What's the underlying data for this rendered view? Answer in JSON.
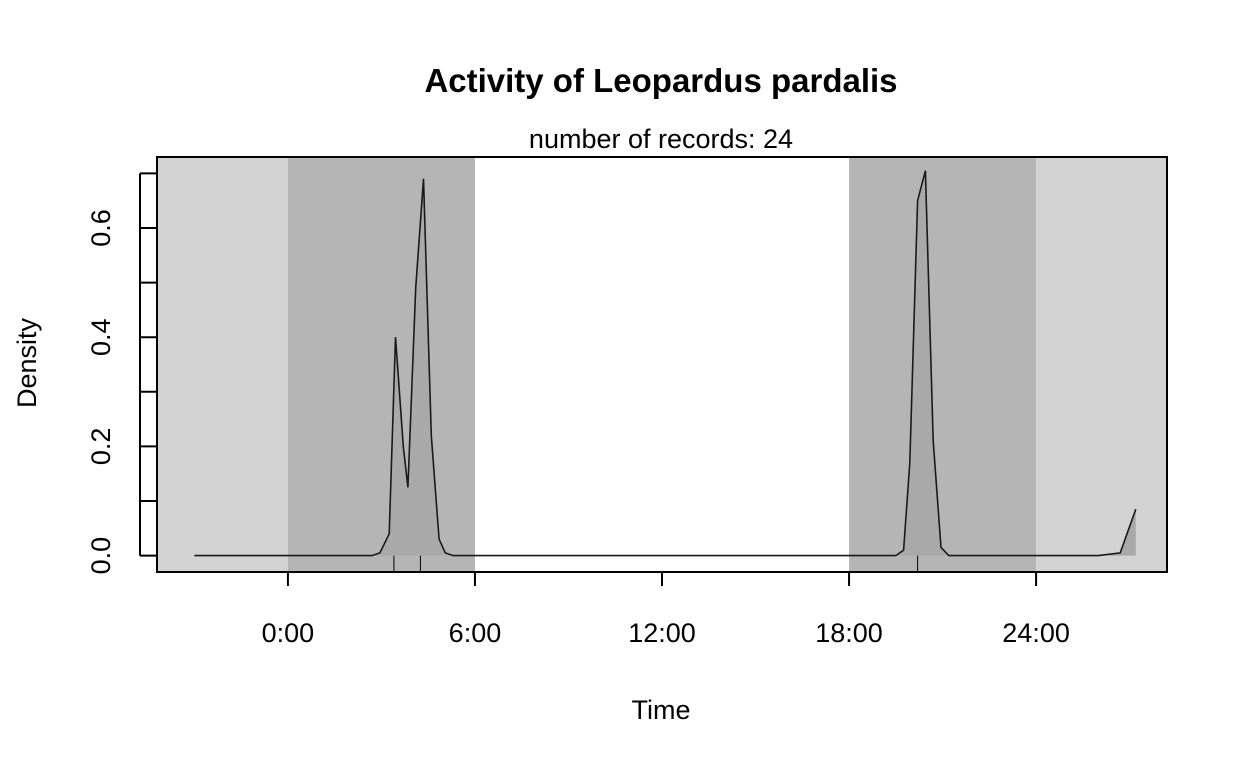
{
  "chart_data": {
    "type": "area",
    "title": "Activity of Leopardus pardalis",
    "subtitle": "number of records: 24",
    "xlabel": "Time",
    "ylabel": "Density",
    "xlim": [
      -4.2,
      28.2
    ],
    "ylim": [
      -0.03,
      0.73
    ],
    "x_ticks": [
      {
        "value": 0,
        "label": "0:00"
      },
      {
        "value": 6,
        "label": "6:00"
      },
      {
        "value": 12,
        "label": "12:00"
      },
      {
        "value": 18,
        "label": "18:00"
      },
      {
        "value": 24,
        "label": "24:00"
      }
    ],
    "y_ticks": [
      {
        "value": 0.0,
        "label": "0.0"
      },
      {
        "value": 0.2,
        "label": "0.2"
      },
      {
        "value": 0.4,
        "label": "0.4"
      },
      {
        "value": 0.6,
        "label": "0.6"
      }
    ],
    "y_minor_ticks": [
      0.1,
      0.3,
      0.5,
      0.7
    ],
    "shading": [
      {
        "from": -4.2,
        "to": 0,
        "color": "#d3d3d3"
      },
      {
        "from": 0,
        "to": 6,
        "color": "#b5b5b5"
      },
      {
        "from": 6,
        "to": 18,
        "color": "#ffffff"
      },
      {
        "from": 18,
        "to": 24,
        "color": "#b5b5b5"
      },
      {
        "from": 24,
        "to": 28.2,
        "color": "#d3d3d3"
      }
    ],
    "series": [
      {
        "x": [
          -3,
          -2,
          -1,
          0,
          1,
          2,
          2.7,
          2.95,
          3.25,
          3.45,
          3.7,
          3.85,
          4.1,
          4.35,
          4.6,
          4.85,
          5.05,
          5.3,
          6,
          8,
          10,
          12,
          14,
          16,
          18,
          19.5,
          19.75,
          19.95,
          20.2,
          20.45,
          20.7,
          20.95,
          21.2,
          22,
          23,
          24,
          25,
          26,
          26.7,
          27.2
        ],
        "y": [
          0,
          0,
          0,
          0,
          0,
          0,
          0,
          0.005,
          0.04,
          0.4,
          0.2,
          0.125,
          0.49,
          0.69,
          0.22,
          0.03,
          0.005,
          0,
          0,
          0,
          0,
          0,
          0,
          0,
          0,
          0,
          0.01,
          0.17,
          0.65,
          0.705,
          0.21,
          0.015,
          0,
          0,
          0,
          0,
          0,
          0,
          0.005,
          0.085
        ]
      }
    ],
    "rug": [
      3.4,
      4.25,
      20.2
    ],
    "colors": {
      "line": "#1a1a1a",
      "fill": "#a9a9a9",
      "axis": "#000000"
    }
  }
}
